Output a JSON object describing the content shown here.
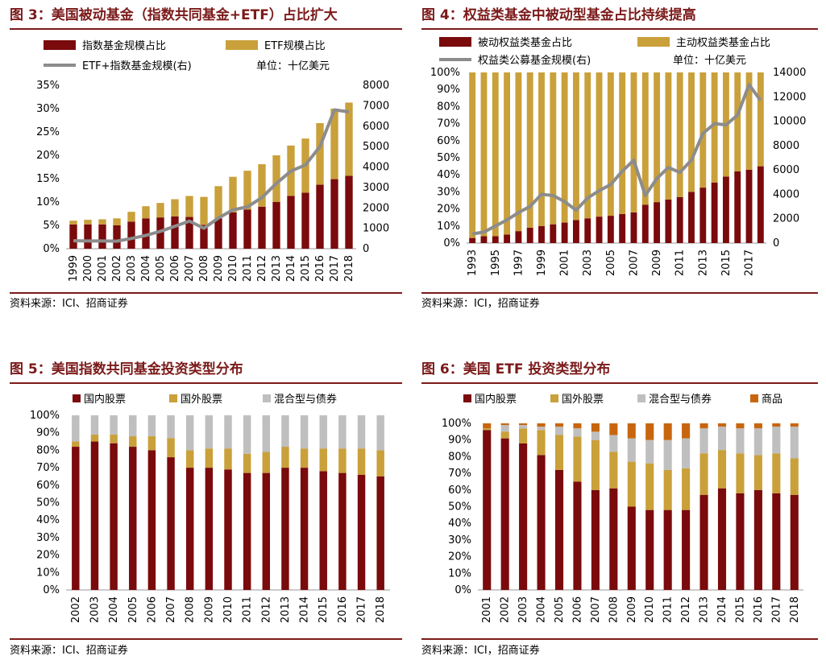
{
  "colors": {
    "dark_red": "#7a0a0c",
    "gold": "#c9a03a",
    "gray_line": "#8c8c8c",
    "gray_bar": "#bfbfbf",
    "orange": "#c8660f",
    "title_red": "#7b1a1a"
  },
  "fig3": {
    "title": "图 3：美国被动基金（指数共同基金+ETF）占比扩大",
    "source": "资料来源：ICI、招商证券",
    "unit": "单位：十亿美元",
    "chart_data": {
      "type": "bar",
      "stacked": true,
      "categories": [
        "1999",
        "2000",
        "2001",
        "2002",
        "2003",
        "2004",
        "2005",
        "2006",
        "2007",
        "2008",
        "2009",
        "2010",
        "2011",
        "2012",
        "2013",
        "2014",
        "2015",
        "2016",
        "2017",
        "2018"
      ],
      "series": [
        {
          "name": "指数基金规模占比",
          "values": [
            5.2,
            5.2,
            5.2,
            5.0,
            5.8,
            6.5,
            6.7,
            6.9,
            6.8,
            5.1,
            6.5,
            7.8,
            8.4,
            9.0,
            10.0,
            11.3,
            12.0,
            13.7,
            14.9,
            15.6
          ]
        },
        {
          "name": "ETF规模占比",
          "values": [
            0.8,
            1.0,
            1.1,
            1.5,
            2.1,
            2.6,
            3.1,
            3.7,
            4.5,
            6.0,
            6.9,
            7.6,
            8.3,
            9.1,
            10.0,
            10.8,
            11.6,
            13.2,
            15.1,
            15.7
          ]
        },
        {
          "name": "ETF+指数基金规模(右)",
          "axis": "right",
          "values": [
            390,
            380,
            380,
            370,
            500,
            650,
            850,
            1100,
            1350,
            1000,
            1500,
            1900,
            2050,
            2500,
            3200,
            3800,
            4100,
            5000,
            6800,
            6700
          ]
        }
      ],
      "yticks_left": [
        "0%",
        "5%",
        "10%",
        "15%",
        "20%",
        "25%",
        "30%",
        "35%"
      ],
      "ylim_left": [
        0,
        35
      ],
      "yticks_right": [
        "0",
        "1000",
        "2000",
        "3000",
        "4000",
        "5000",
        "6000",
        "7000",
        "8000"
      ],
      "ylim_right": [
        0,
        8000
      ]
    }
  },
  "fig4": {
    "title": "图 4：权益类基金中被动型基金占比持续提高",
    "source": "资料来源：ICI，招商证券",
    "unit": "单位：十亿美元",
    "chart_data": {
      "type": "bar",
      "stacked": true,
      "categories": [
        "1993",
        "1994",
        "1995",
        "1996",
        "1997",
        "1998",
        "1999",
        "2000",
        "2001",
        "2002",
        "2003",
        "2004",
        "2005",
        "2006",
        "2007",
        "2008",
        "2009",
        "2010",
        "2011",
        "2012",
        "2013",
        "2014",
        "2015",
        "2016",
        "2017",
        "2018"
      ],
      "tick_labels": [
        "1993",
        "1995",
        "1997",
        "1999",
        "2001",
        "2003",
        "2005",
        "2007",
        "2009",
        "2011",
        "2013",
        "2015",
        "2017"
      ],
      "series": [
        {
          "name": "被动权益类基金占比",
          "values": [
            3,
            4,
            4,
            5,
            7,
            9,
            10,
            11,
            12,
            13.5,
            14.5,
            15.5,
            16,
            17,
            18,
            22.5,
            24,
            25.5,
            27,
            30,
            32.5,
            35.5,
            39,
            42,
            43,
            45
          ]
        },
        {
          "name": "主动权益类基金占比",
          "values": [
            97,
            96,
            96,
            95,
            93,
            91,
            90,
            89,
            88,
            86.5,
            85.5,
            84.5,
            84,
            83,
            82,
            77.5,
            76,
            74.5,
            73,
            70,
            67.5,
            64.5,
            61,
            58,
            57,
            55
          ]
        },
        {
          "name": "权益类公募基金规模(右)",
          "axis": "right",
          "values": [
            750,
            900,
            1400,
            1900,
            2500,
            3000,
            4000,
            3900,
            3400,
            2700,
            3700,
            4300,
            4800,
            5900,
            6800,
            3900,
            5300,
            6200,
            5800,
            6800,
            9000,
            9800,
            9700,
            10500,
            13000,
            11700
          ]
        }
      ],
      "yticks_left": [
        "0%",
        "10%",
        "20%",
        "30%",
        "40%",
        "50%",
        "60%",
        "70%",
        "80%",
        "90%",
        "100%"
      ],
      "ylim_left": [
        0,
        100
      ],
      "yticks_right": [
        "0",
        "2000",
        "4000",
        "6000",
        "8000",
        "10000",
        "12000",
        "14000"
      ],
      "ylim_right": [
        0,
        14000
      ]
    }
  },
  "fig5": {
    "title": "图 5：美国指数共同基金投资类型分布",
    "source": "资料来源：ICI、招商证券",
    "chart_data": {
      "type": "bar",
      "stacked": true,
      "categories": [
        "2002",
        "2003",
        "2004",
        "2005",
        "2006",
        "2007",
        "2008",
        "2009",
        "2010",
        "2011",
        "2012",
        "2013",
        "2014",
        "2015",
        "2016",
        "2017",
        "2018"
      ],
      "series": [
        {
          "name": "国内股票",
          "values": [
            82,
            85,
            84,
            82,
            80,
            76,
            70,
            70,
            69,
            67,
            67,
            70,
            70,
            68,
            67,
            66,
            65
          ]
        },
        {
          "name": "国外股票",
          "values": [
            3,
            4,
            5,
            6,
            8,
            11,
            10,
            11,
            12,
            11,
            12,
            12,
            11,
            13,
            14,
            15,
            15
          ]
        },
        {
          "name": "混合型与债券",
          "values": [
            15,
            11,
            11,
            12,
            12,
            13,
            20,
            19,
            19,
            22,
            21,
            18,
            19,
            19,
            19,
            19,
            20
          ]
        }
      ],
      "yticks": [
        "0%",
        "10%",
        "20%",
        "30%",
        "40%",
        "50%",
        "60%",
        "70%",
        "80%",
        "90%",
        "100%"
      ],
      "ylim": [
        0,
        100
      ]
    }
  },
  "fig6": {
    "title": "图 6：美国 ETF 投资类型分布",
    "source": "资料来源：ICI，招商证券",
    "chart_data": {
      "type": "bar",
      "stacked": true,
      "categories": [
        "2001",
        "2002",
        "2003",
        "2004",
        "2005",
        "2006",
        "2007",
        "2008",
        "2009",
        "2010",
        "2011",
        "2012",
        "2013",
        "2014",
        "2015",
        "2016",
        "2017",
        "2018"
      ],
      "series": [
        {
          "name": "国内股票",
          "values": [
            96,
            91,
            88,
            81,
            72,
            65,
            60,
            61,
            50,
            48,
            48,
            48,
            57,
            61,
            58,
            60,
            58,
            57
          ]
        },
        {
          "name": "国外股票",
          "values": [
            1,
            4,
            9,
            15,
            21,
            27,
            30,
            22,
            27,
            28,
            24,
            25,
            25,
            23,
            24,
            21,
            24,
            22
          ]
        },
        {
          "name": "混合型与债券",
          "values": [
            0,
            4,
            2,
            2,
            5,
            5,
            5,
            10,
            14,
            14,
            18,
            18,
            15,
            14,
            15,
            16,
            16,
            19
          ]
        },
        {
          "name": "商品",
          "values": [
            3,
            1,
            1,
            2,
            2,
            3,
            5,
            7,
            9,
            10,
            10,
            9,
            3,
            2,
            3,
            3,
            2,
            2
          ]
        }
      ],
      "yticks": [
        "0%",
        "10%",
        "20%",
        "30%",
        "40%",
        "50%",
        "60%",
        "70%",
        "80%",
        "90%",
        "100%"
      ],
      "ylim": [
        0,
        100
      ]
    }
  }
}
